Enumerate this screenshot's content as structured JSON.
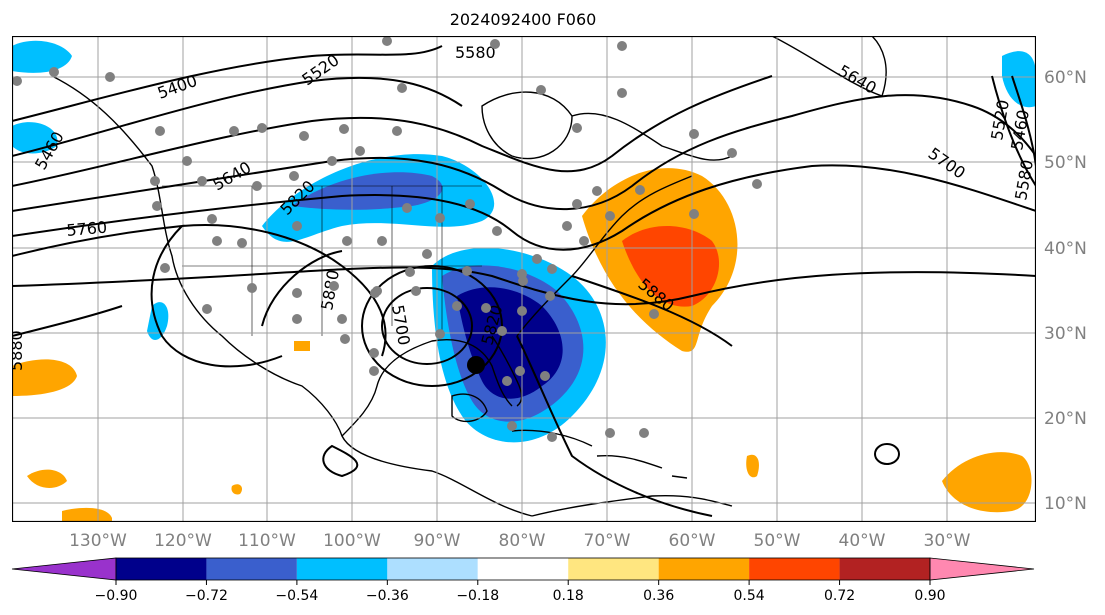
{
  "title": "2024092400 F060",
  "lon_labels": [
    "130°W",
    "120°W",
    "110°W",
    "100°W",
    "90°W",
    "80°W",
    "70°W",
    "60°W",
    "50°W",
    "40°W",
    "30°W"
  ],
  "lat_labels": [
    "60°N",
    "50°N",
    "40°N",
    "30°N",
    "20°N",
    "10°N"
  ],
  "contour_labels": [
    "5400",
    "5520",
    "5580",
    "5640",
    "5460",
    "5640",
    "5700",
    "5760",
    "5820",
    "5880",
    "5880",
    "5880",
    "5700",
    "5820",
    "5520",
    "5460",
    "5580"
  ],
  "colorbar": {
    "ticks": [
      "−0.90",
      "−0.72",
      "−0.54",
      "−0.36",
      "−0.18",
      "0.18",
      "0.36",
      "0.54",
      "0.72",
      "0.90"
    ],
    "colors": [
      "#9932CC",
      "#00008B",
      "#3A5FCD",
      "#00BFFF",
      "#ADDFFF",
      "#FFFFFF",
      "#FFE680",
      "#FFA500",
      "#FF4500",
      "#B22222",
      "#FF88B0"
    ]
  },
  "storm_marker": "black dot"
}
